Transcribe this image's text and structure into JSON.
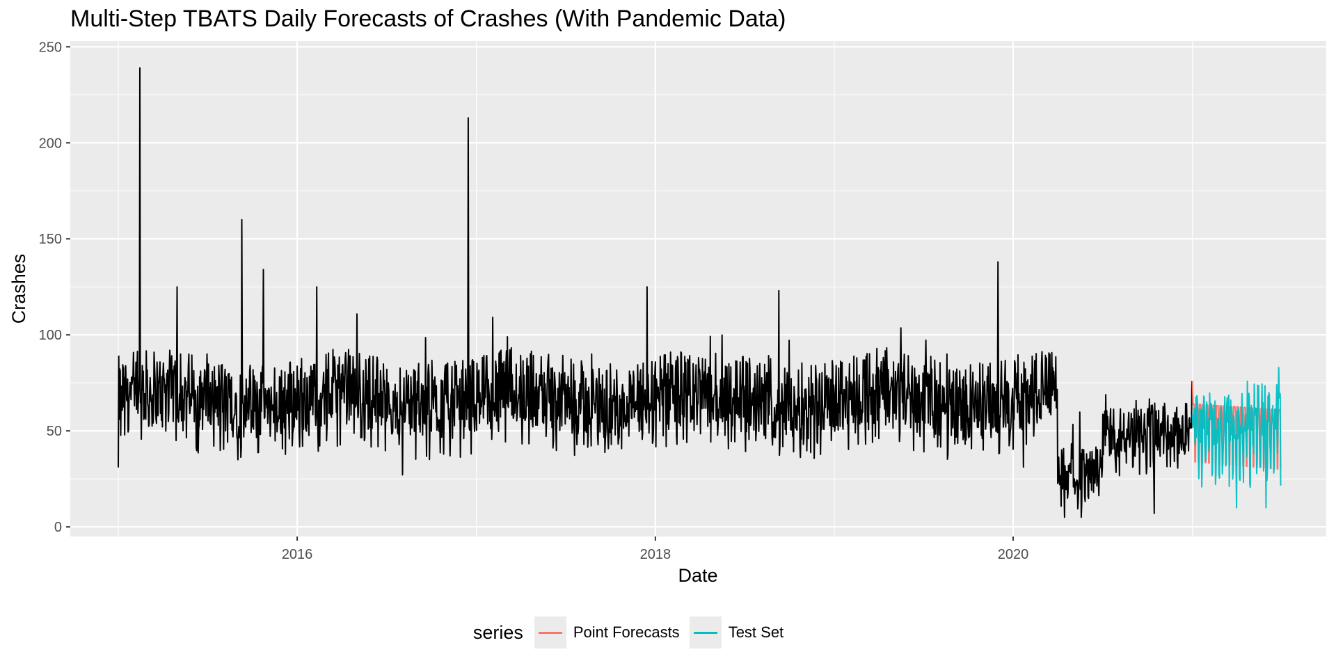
{
  "chart_data": {
    "type": "line",
    "title": "Multi-Step TBATS Daily Forecasts of Crashes (With Pandemic Data)",
    "xlabel": "Date",
    "ylabel": "Crashes",
    "x_ticks": [
      "2016",
      "2018",
      "2020"
    ],
    "y_ticks": [
      "0",
      "50",
      "100",
      "150",
      "200",
      "250"
    ],
    "xlim": [
      "2014-09-25",
      "2021-10-01"
    ],
    "ylim": [
      -5,
      253
    ],
    "grid": true,
    "legend_position": "bottom",
    "legend_title": "series",
    "colors": {
      "history": "#000000",
      "Point Forecasts": "#F8766D",
      "Test Set": "#00BFC4",
      "panel": "#EBEBEB"
    },
    "history": {
      "start": "2015-01-01",
      "end": "2020-12-31",
      "frequency": "daily",
      "y_min": 5,
      "y_max": 239,
      "typical_range": [
        40,
        95
      ],
      "notable_values": [
        {
          "date": "2015-01-01",
          "y": 31
        },
        {
          "date": "2015-02-14",
          "y": 239
        },
        {
          "date": "2015-05-01",
          "y": 125
        },
        {
          "date": "2015-09-10",
          "y": 160
        },
        {
          "date": "2015-10-24",
          "y": 134
        },
        {
          "date": "2016-02-10",
          "y": 125
        },
        {
          "date": "2016-12-15",
          "y": 213
        },
        {
          "date": "2017-12-15",
          "y": 125
        },
        {
          "date": "2018-09-10",
          "y": 123
        },
        {
          "date": "2019-12-01",
          "y": 138
        },
        {
          "date": "2020-04-15",
          "y": 5
        },
        {
          "date": "2020-10-15",
          "y": 7
        },
        {
          "date": "2020-12-31",
          "y": 76
        }
      ]
    },
    "series": [
      {
        "name": "Point Forecasts",
        "start": "2021-01-01",
        "end": "2021-06-30",
        "high": 64,
        "low": 30
      },
      {
        "name": "Test Set",
        "start": "2021-01-01",
        "end": "2021-06-30",
        "y_min": 8,
        "y_max": 83
      }
    ]
  }
}
